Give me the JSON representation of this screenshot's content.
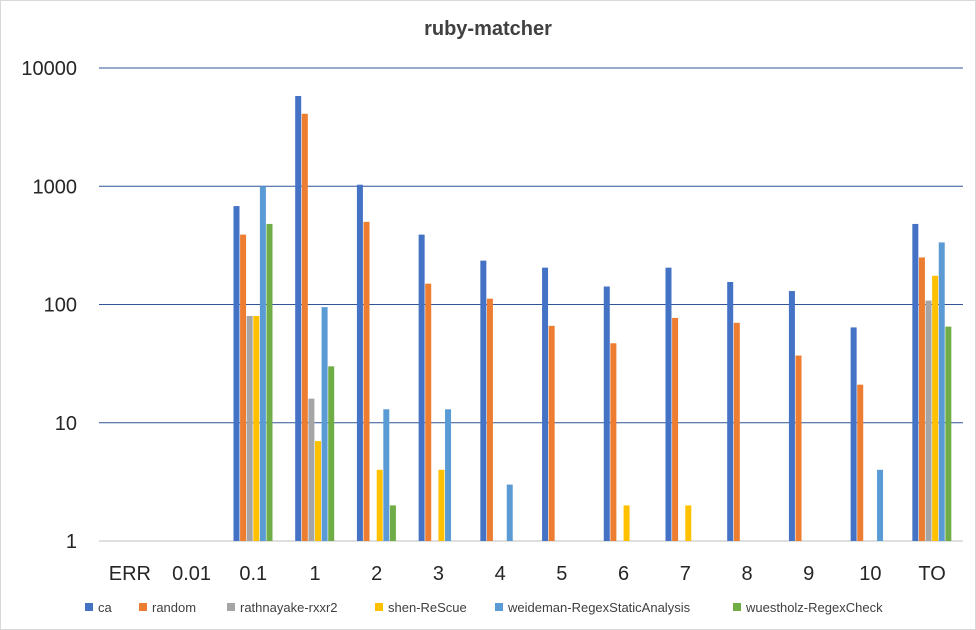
{
  "chart_data": {
    "type": "bar",
    "title": "ruby-matcher",
    "xlabel": "",
    "ylabel": "",
    "y_scale": "log",
    "ylim": [
      1,
      10000
    ],
    "y_ticks": [
      "1",
      "10",
      "100",
      "1000",
      "10000"
    ],
    "grid": "horizontal",
    "legend_position": "bottom",
    "categories": [
      "ERR",
      "0.01",
      "0.1",
      "1",
      "2",
      "3",
      "4",
      "5",
      "6",
      "7",
      "8",
      "9",
      "10",
      "TO"
    ],
    "series": [
      {
        "name": "ca",
        "color": "#4472c4",
        "values": [
          null,
          null,
          680,
          5800,
          1030,
          390,
          235,
          205,
          142,
          205,
          155,
          130,
          64,
          480
        ]
      },
      {
        "name": "random",
        "color": "#ed7d31",
        "values": [
          null,
          null,
          390,
          4100,
          500,
          150,
          112,
          66,
          47,
          77,
          70,
          37,
          21,
          250
        ]
      },
      {
        "name": "rathnayake-rxxr2",
        "color": "#a5a5a5",
        "values": [
          null,
          null,
          80,
          16,
          null,
          null,
          null,
          null,
          null,
          null,
          null,
          null,
          null,
          108
        ]
      },
      {
        "name": "shen-ReScue",
        "color": "#ffc000",
        "values": [
          null,
          null,
          80,
          7,
          4,
          4,
          null,
          null,
          2,
          2,
          null,
          null,
          null,
          175
        ]
      },
      {
        "name": "weideman-RegexStaticAnalysis",
        "color": "#5b9bd5",
        "values": [
          null,
          null,
          1000,
          95,
          13,
          13,
          3,
          null,
          null,
          null,
          null,
          null,
          4,
          335
        ]
      },
      {
        "name": "wuestholz-RegexCheck",
        "color": "#70ad47",
        "values": [
          null,
          null,
          480,
          30,
          2,
          null,
          null,
          null,
          null,
          null,
          null,
          null,
          null,
          65
        ]
      }
    ]
  }
}
